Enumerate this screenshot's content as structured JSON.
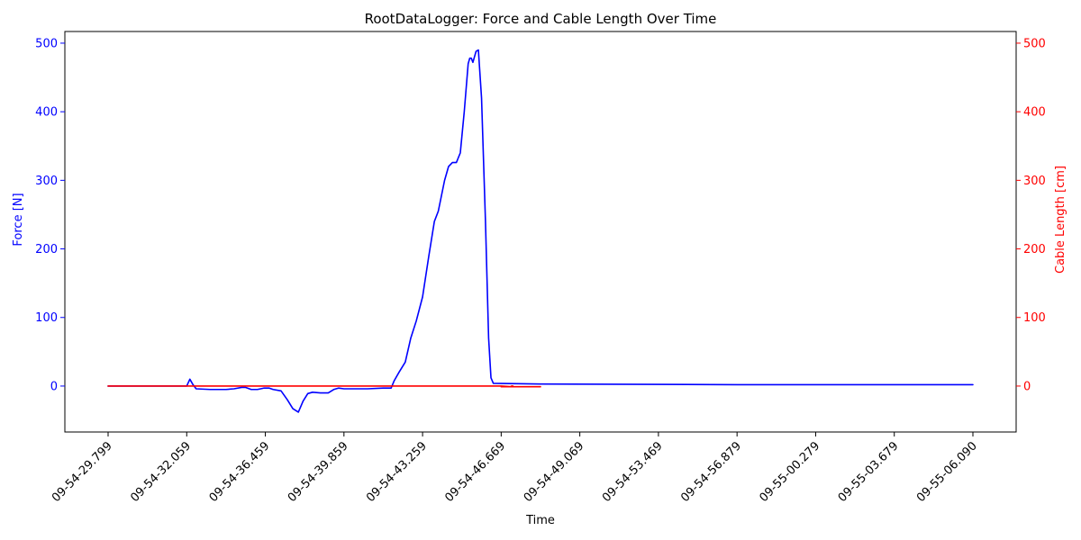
{
  "chart_data": {
    "type": "line",
    "title": "RootDataLogger: Force and Cable Length Over Time",
    "xlabel": "Time",
    "y_left_label": "Force [N]",
    "y_right_label": "Cable Length [cm]",
    "y_left_color": "#0000ff",
    "y_right_color": "#ff0000",
    "ylim_left": [
      -67,
      517
    ],
    "ylim_right": [
      -67,
      517
    ],
    "y_ticks": [
      0,
      100,
      200,
      300,
      400,
      500
    ],
    "x_range": [
      -0.55,
      11.55
    ],
    "x_tick_labels": [
      "09-54-29.799",
      "09-54-32.059",
      "09-54-36.459",
      "09-54-39.859",
      "09-54-43.259",
      "09-54-46.669",
      "09-54-49.069",
      "09-54-53.469",
      "09-54-56.879",
      "09-55-00.279",
      "09-55-03.679",
      "09-55-06.090"
    ],
    "series": [
      {
        "name": "Force [N]",
        "axis": "left",
        "color": "#0000ff",
        "points": [
          [
            0,
            0
          ],
          [
            0.9,
            0
          ],
          [
            1.0,
            0
          ],
          [
            1.04,
            10
          ],
          [
            1.08,
            2
          ],
          [
            1.12,
            -4
          ],
          [
            1.3,
            -5
          ],
          [
            1.5,
            -5
          ],
          [
            1.6,
            -4
          ],
          [
            1.7,
            -2
          ],
          [
            1.75,
            -2
          ],
          [
            1.82,
            -5
          ],
          [
            1.9,
            -5
          ],
          [
            1.98,
            -3
          ],
          [
            2.05,
            -3
          ],
          [
            2.1,
            -5
          ],
          [
            2.2,
            -7
          ],
          [
            2.28,
            -20
          ],
          [
            2.35,
            -33
          ],
          [
            2.42,
            -38
          ],
          [
            2.48,
            -22
          ],
          [
            2.54,
            -11
          ],
          [
            2.6,
            -9
          ],
          [
            2.7,
            -10
          ],
          [
            2.8,
            -10
          ],
          [
            2.87,
            -5
          ],
          [
            2.93,
            -3
          ],
          [
            3.0,
            -4
          ],
          [
            3.3,
            -4
          ],
          [
            3.5,
            -3
          ],
          [
            3.6,
            -3
          ],
          [
            3.64,
            8
          ],
          [
            3.7,
            20
          ],
          [
            3.78,
            35
          ],
          [
            3.85,
            70
          ],
          [
            3.92,
            95
          ],
          [
            4.0,
            130
          ],
          [
            4.08,
            190
          ],
          [
            4.15,
            240
          ],
          [
            4.2,
            255
          ],
          [
            4.28,
            300
          ],
          [
            4.33,
            320
          ],
          [
            4.38,
            326
          ],
          [
            4.43,
            326
          ],
          [
            4.48,
            340
          ],
          [
            4.53,
            400
          ],
          [
            4.58,
            470
          ],
          [
            4.6,
            478
          ],
          [
            4.62,
            478
          ],
          [
            4.64,
            472
          ],
          [
            4.66,
            480
          ],
          [
            4.68,
            488
          ],
          [
            4.71,
            490
          ],
          [
            4.75,
            420
          ],
          [
            4.8,
            240
          ],
          [
            4.84,
            70
          ],
          [
            4.87,
            12
          ],
          [
            4.9,
            4
          ],
          [
            5.5,
            3
          ],
          [
            8.0,
            2
          ],
          [
            11.0,
            2
          ]
        ]
      },
      {
        "name": "Cable Length [cm]",
        "axis": "right",
        "color": "#ff0000",
        "points": [
          [
            0,
            0
          ],
          [
            1.0,
            0
          ],
          [
            2.0,
            0
          ],
          [
            3.0,
            0
          ],
          [
            4.0,
            0
          ],
          [
            5.0,
            0
          ],
          [
            5.13,
            -1
          ],
          [
            5.5,
            -1
          ],
          [
            5.12,
            -1
          ],
          [
            5.0,
            -1
          ],
          [
            5.13,
            -1
          ],
          [
            5.15,
            -1
          ],
          [
            5.5,
            -1
          ],
          [
            5.12,
            -1
          ],
          [
            5.13,
            -1
          ],
          [
            5.13,
            -1
          ],
          [
            5.12,
            -1
          ],
          [
            5.12,
            -1
          ],
          [
            5.13,
            0
          ],
          [
            5.15,
            0
          ]
        ]
      }
    ]
  }
}
